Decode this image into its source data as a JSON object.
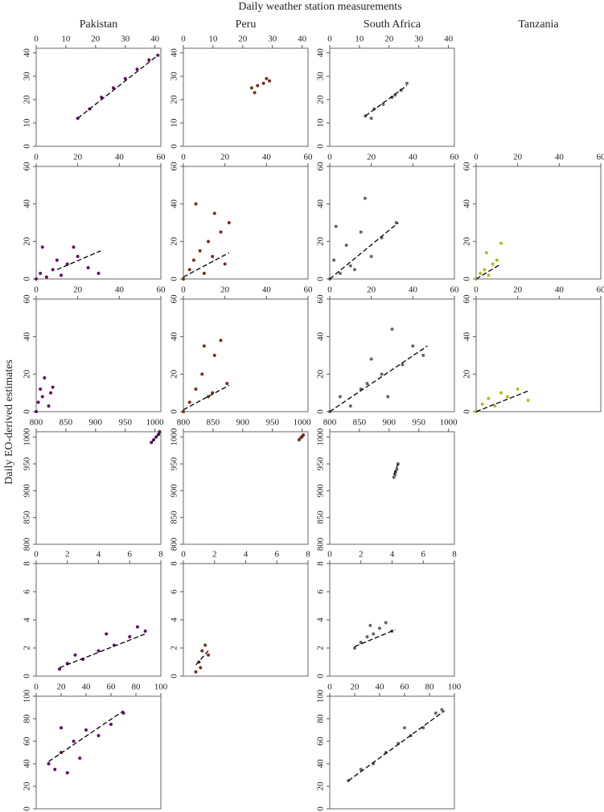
{
  "title": "Daily weather station measurements",
  "ylabel": "Daily EO-derived estimates",
  "columns": [
    "Pakistan",
    "Peru",
    "South Africa",
    "Tanzania"
  ],
  "chart_data": [
    {
      "type": "scatter",
      "color": "#6a0a6a",
      "x": [
        14,
        18,
        22,
        26,
        30,
        34,
        38,
        41
      ],
      "y": [
        12,
        16,
        21,
        25,
        29,
        33,
        37,
        39
      ],
      "fit": {
        "x": [
          14,
          41
        ],
        "y": [
          12,
          39
        ]
      },
      "xlim": [
        0,
        42
      ],
      "ylim": [
        0,
        42
      ],
      "xticks": [
        0,
        10,
        20,
        30,
        40
      ],
      "yticks": [
        0,
        10,
        20,
        30,
        40
      ]
    },
    {
      "type": "scatter",
      "color": "#7a2e1a",
      "x": [
        23,
        25,
        27,
        29,
        24,
        28
      ],
      "y": [
        25,
        26,
        27,
        28,
        23,
        29
      ],
      "xlim": [
        0,
        42
      ],
      "ylim": [
        0,
        42
      ],
      "xticks": [
        0,
        10,
        20,
        30,
        40
      ],
      "yticks": [
        0,
        10,
        20,
        30,
        40
      ]
    },
    {
      "type": "scatter",
      "color": "#666666",
      "x": [
        12,
        15,
        18,
        21,
        24,
        26,
        14,
        22
      ],
      "y": [
        13,
        16,
        18,
        21,
        24,
        27,
        12,
        22
      ],
      "fit": {
        "x": [
          12,
          26
        ],
        "y": [
          13,
          26
        ]
      },
      "xlim": [
        0,
        42
      ],
      "ylim": [
        0,
        42
      ],
      "xticks": [
        0,
        10,
        20,
        30,
        40
      ],
      "yticks": [
        0,
        10,
        20,
        30,
        40
      ]
    },
    {
      "type": "scatter",
      "color": "#6a0a6a",
      "x": [
        0,
        2,
        5,
        8,
        12,
        15,
        18,
        20,
        25,
        30,
        3,
        10
      ],
      "y": [
        0,
        3,
        1,
        5,
        2,
        8,
        17,
        12,
        6,
        3,
        17,
        10
      ],
      "fit": {
        "x": [
          10,
          31
        ],
        "y": [
          5,
          15
        ]
      },
      "xlim": [
        0,
        60
      ],
      "ylim": [
        0,
        60
      ],
      "xticks": [
        0,
        20,
        40,
        60
      ],
      "yticks": [
        0,
        20,
        40,
        60
      ]
    },
    {
      "type": "scatter",
      "color": "#7a2e1a",
      "x": [
        0,
        3,
        5,
        8,
        10,
        12,
        15,
        18,
        20,
        22,
        6,
        14
      ],
      "y": [
        0,
        5,
        10,
        15,
        3,
        20,
        35,
        25,
        8,
        30,
        40,
        12
      ],
      "fit": {
        "x": [
          0,
          22
        ],
        "y": [
          1,
          14
        ]
      },
      "xlim": [
        0,
        60
      ],
      "ylim": [
        0,
        60
      ],
      "xticks": [
        0,
        20,
        40,
        60
      ],
      "yticks": [
        0,
        20,
        40,
        60
      ]
    },
    {
      "type": "scatter",
      "color": "#666666",
      "x": [
        0,
        2,
        5,
        8,
        10,
        15,
        17,
        20,
        25,
        32,
        3,
        12
      ],
      "y": [
        0,
        10,
        3,
        18,
        7,
        25,
        43,
        12,
        22,
        30,
        28,
        5
      ],
      "fit": {
        "x": [
          0,
          33
        ],
        "y": [
          0,
          30
        ]
      },
      "xlim": [
        0,
        60
      ],
      "ylim": [
        0,
        60
      ],
      "xticks": [
        0,
        20,
        40,
        60
      ],
      "yticks": [
        0,
        20,
        40,
        60
      ]
    },
    {
      "type": "scatter",
      "color": "#b8b820",
      "x": [
        0,
        2,
        4,
        6,
        8,
        10,
        12,
        5
      ],
      "y": [
        0,
        3,
        5,
        2,
        8,
        10,
        19,
        14
      ],
      "fit": {
        "x": [
          0,
          12
        ],
        "y": [
          0,
          8
        ]
      },
      "xlim": [
        0,
        60
      ],
      "ylim": [
        0,
        60
      ],
      "xticks": [
        0,
        20,
        40,
        60
      ],
      "yticks": [
        0,
        20,
        40,
        60
      ]
    },
    {
      "type": "scatter",
      "color": "#6a0a6a",
      "x": [
        0,
        1,
        2,
        4,
        6,
        7,
        8,
        3
      ],
      "y": [
        0,
        5,
        12,
        18,
        3,
        10,
        13,
        8
      ],
      "xlim": [
        0,
        60
      ],
      "ylim": [
        0,
        60
      ],
      "xticks": [
        0,
        20,
        40,
        60
      ],
      "yticks": [
        0,
        20,
        40,
        60
      ]
    },
    {
      "type": "scatter",
      "color": "#7a2e1a",
      "x": [
        0,
        3,
        6,
        9,
        12,
        15,
        18,
        21,
        10,
        14
      ],
      "y": [
        0,
        5,
        12,
        20,
        8,
        30,
        38,
        15,
        35,
        10
      ],
      "fit": {
        "x": [
          0,
          22
        ],
        "y": [
          1,
          14
        ]
      },
      "xlim": [
        0,
        60
      ],
      "ylim": [
        0,
        60
      ],
      "xticks": [
        0,
        20,
        40,
        60
      ],
      "yticks": [
        0,
        20,
        40,
        60
      ]
    },
    {
      "type": "scatter",
      "color": "#666666",
      "x": [
        0,
        5,
        10,
        15,
        20,
        25,
        30,
        35,
        40,
        45,
        18,
        28
      ],
      "y": [
        0,
        8,
        3,
        12,
        28,
        20,
        44,
        25,
        35,
        30,
        15,
        8
      ],
      "fit": {
        "x": [
          0,
          47
        ],
        "y": [
          0,
          35
        ]
      },
      "xlim": [
        0,
        60
      ],
      "ylim": [
        0,
        60
      ],
      "xticks": [
        0,
        20,
        40,
        60
      ],
      "yticks": [
        0,
        20,
        40,
        60
      ]
    },
    {
      "type": "scatter",
      "color": "#b8b820",
      "x": [
        0,
        3,
        6,
        9,
        12,
        15,
        20,
        25
      ],
      "y": [
        0,
        4,
        7,
        3,
        10,
        8,
        12,
        6
      ],
      "fit": {
        "x": [
          0,
          25
        ],
        "y": [
          0,
          11
        ]
      },
      "xlim": [
        0,
        60
      ],
      "ylim": [
        0,
        60
      ],
      "xticks": [
        0,
        20,
        40,
        60
      ],
      "yticks": [
        0,
        20,
        40,
        60
      ]
    },
    {
      "type": "scatter",
      "color": "#6a0a6a",
      "x": [
        994,
        998,
        1002,
        1006,
        1008
      ],
      "y": [
        990,
        995,
        1000,
        1005,
        1010
      ],
      "fit": {
        "x": [
          994,
          1010
        ],
        "y": [
          990,
          1010
        ]
      },
      "xlim": [
        800,
        1010
      ],
      "ylim": [
        800,
        1010
      ],
      "xticks": [
        800,
        850,
        900,
        950,
        1000
      ],
      "yticks": [
        800,
        850,
        900,
        950,
        1000
      ]
    },
    {
      "type": "scatter",
      "color": "#7a2e1a",
      "x": [
        995,
        998,
        1000,
        1002
      ],
      "y": [
        995,
        999,
        1001,
        1004
      ],
      "xlim": [
        800,
        1010
      ],
      "ylim": [
        800,
        1010
      ],
      "xticks": [
        800,
        850,
        900,
        950,
        1000
      ],
      "yticks": [
        800,
        850,
        900,
        950,
        1000
      ]
    },
    {
      "type": "scatter",
      "color": "#666666",
      "x": [
        908,
        911,
        913,
        915,
        910
      ],
      "y": [
        925,
        935,
        940,
        950,
        930
      ],
      "fit": {
        "x": [
          908,
          915
        ],
        "y": [
          930,
          950
        ]
      },
      "xlim": [
        800,
        1010
      ],
      "ylim": [
        800,
        1010
      ],
      "xticks": [
        800,
        850,
        900,
        950,
        1000
      ],
      "yticks": [
        800,
        850,
        900,
        950,
        1000
      ]
    },
    {
      "type": "scatter",
      "color": "#6a0a6a",
      "x": [
        1.5,
        2,
        3,
        4,
        5,
        6,
        7,
        2.5,
        4.5,
        6.5
      ],
      "y": [
        0.5,
        0.9,
        1.2,
        1.8,
        2.2,
        2.8,
        3.2,
        1.5,
        3.0,
        3.5
      ],
      "fit": {
        "x": [
          1.5,
          7
        ],
        "y": [
          0.6,
          3.0
        ]
      },
      "xlim": [
        0,
        8
      ],
      "ylim": [
        0,
        8
      ],
      "xticks": [
        0,
        2,
        4,
        6,
        8
      ],
      "yticks": [
        0,
        2,
        4,
        6,
        8
      ]
    },
    {
      "type": "scatter",
      "color": "#7a2e1a",
      "x": [
        0.8,
        1,
        1.2,
        1.4,
        1.6,
        1.1
      ],
      "y": [
        0.3,
        1.0,
        1.8,
        2.2,
        1.5,
        0.6
      ],
      "fit": {
        "x": [
          0.8,
          1.6
        ],
        "y": [
          0.8,
          1.8
        ]
      },
      "xlim": [
        0,
        8
      ],
      "ylim": [
        0,
        8
      ],
      "xticks": [
        0,
        2,
        4,
        6,
        8
      ],
      "yticks": [
        0,
        2,
        4,
        6,
        8
      ]
    },
    {
      "type": "scatter",
      "color": "#666666",
      "x": [
        1.6,
        2,
        2.4,
        2.8,
        3.2,
        3.6,
        4,
        2.6
      ],
      "y": [
        2.0,
        2.4,
        2.8,
        3.0,
        3.4,
        3.8,
        3.2,
        3.6
      ],
      "fit": {
        "x": [
          1.6,
          4.2
        ],
        "y": [
          2.1,
          3.3
        ]
      },
      "xlim": [
        0,
        8
      ],
      "ylim": [
        0,
        8
      ],
      "xticks": [
        0,
        2,
        4,
        6,
        8
      ],
      "yticks": [
        0,
        2,
        4,
        6,
        8
      ]
    },
    {
      "type": "scatter",
      "color": "#6a0a6a",
      "x": [
        10,
        15,
        20,
        25,
        30,
        40,
        50,
        60,
        70,
        20,
        35
      ],
      "y": [
        40,
        35,
        50,
        32,
        60,
        70,
        65,
        75,
        85,
        72,
        45
      ],
      "fit": {
        "x": [
          10,
          70
        ],
        "y": [
          42,
          87
        ]
      },
      "xlim": [
        0,
        100
      ],
      "ylim": [
        0,
        100
      ],
      "xticks": [
        0,
        20,
        40,
        60,
        80,
        100
      ],
      "yticks": [
        0,
        20,
        40,
        60,
        80,
        100
      ]
    },
    {
      "type": "scatter",
      "color": "#666666",
      "x": [
        15,
        25,
        35,
        45,
        55,
        65,
        75,
        85,
        90,
        60
      ],
      "y": [
        25,
        35,
        40,
        50,
        58,
        65,
        72,
        85,
        88,
        72
      ],
      "fit": {
        "x": [
          15,
          92
        ],
        "y": [
          25,
          87
        ]
      },
      "xlim": [
        0,
        100
      ],
      "ylim": [
        0,
        100
      ],
      "xticks": [
        0,
        20,
        40,
        60,
        80,
        100
      ],
      "yticks": [
        0,
        20,
        40,
        60,
        80,
        100
      ]
    }
  ]
}
